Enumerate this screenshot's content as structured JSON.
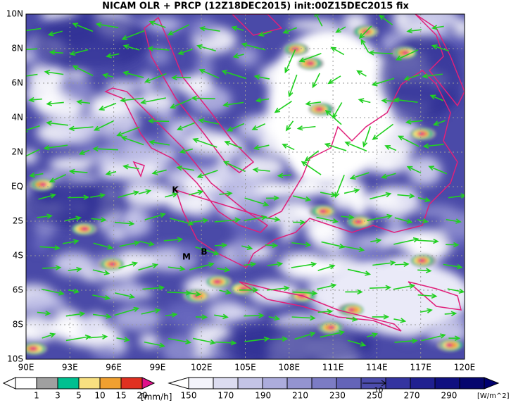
{
  "title": "NICAM OLR + PRCP (12Z18DEC2015) init:00Z15DEC2015 fix",
  "map": {
    "lat_labels": [
      "10N",
      "8N",
      "6N",
      "4N",
      "2N",
      "EQ",
      "2S",
      "4S",
      "6S",
      "8S",
      "10S"
    ],
    "lon_labels": [
      "90E",
      "93E",
      "96E",
      "99E",
      "102E",
      "105E",
      "108E",
      "111E",
      "114E",
      "117E",
      "120E"
    ],
    "place_labels": [
      "K",
      "M",
      "B"
    ]
  },
  "precip_legend": {
    "labels": [
      1,
      3,
      5,
      10,
      15,
      20
    ],
    "unit": "[mm/h]"
  },
  "olr_legend": {
    "labels": [
      150,
      170,
      190,
      210,
      230,
      250,
      270,
      290
    ],
    "unit": "[W/m^2]"
  },
  "vector_reference": "10"
}
